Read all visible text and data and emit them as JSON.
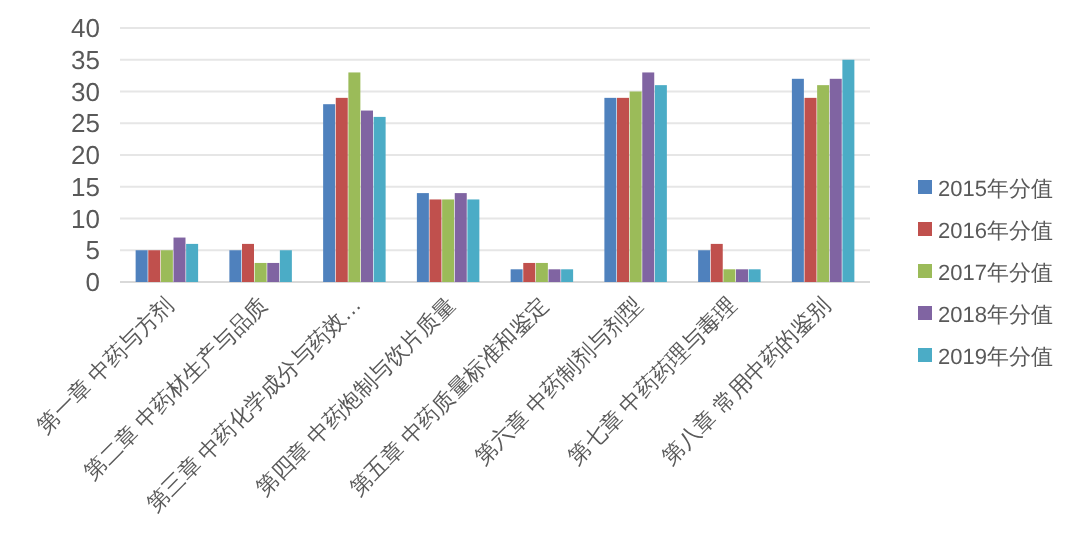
{
  "chart_data": {
    "type": "bar",
    "categories": [
      "第一章 中药与方剂",
      "第二章 中药材生产与品质",
      "第三章 中药化学成分与药效…",
      "第四章 中药炮制与饮片质量",
      "第五章 中药质量标准和鉴定",
      "第六章 中药制剂与剂型",
      "第七章 中药药理与毒理",
      "第八章 常用中药的鉴别"
    ],
    "series": [
      {
        "name": "2015年分值",
        "color": "#4f81bd",
        "values": [
          5,
          5,
          28,
          14,
          2,
          29,
          5,
          32
        ]
      },
      {
        "name": "2016年分值",
        "color": "#c0504d",
        "values": [
          5,
          6,
          29,
          13,
          3,
          29,
          6,
          29
        ]
      },
      {
        "name": "2017年分值",
        "color": "#9bbb59",
        "values": [
          5,
          3,
          33,
          13,
          3,
          30,
          2,
          31
        ]
      },
      {
        "name": "2018年分值",
        "color": "#8064a2",
        "values": [
          7,
          3,
          27,
          14,
          2,
          33,
          2,
          32
        ]
      },
      {
        "name": "2019年分值",
        "color": "#4bacc6",
        "values": [
          6,
          5,
          26,
          13,
          2,
          31,
          2,
          35
        ]
      }
    ],
    "ylim": [
      0,
      40
    ],
    "yticks": [
      0,
      5,
      10,
      15,
      20,
      25,
      30,
      35,
      40
    ],
    "grid": "y",
    "legend": "right"
  }
}
